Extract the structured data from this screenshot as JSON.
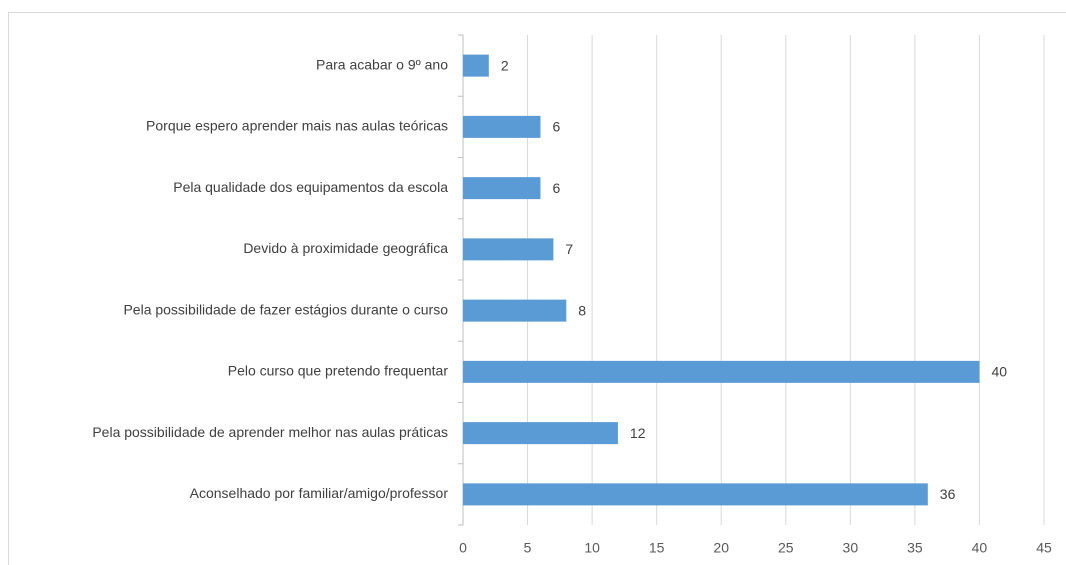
{
  "chart_data": {
    "type": "bar",
    "orientation": "horizontal",
    "categories": [
      "Para acabar o 9º ano",
      "Porque espero aprender mais nas aulas teóricas",
      "Pela qualidade dos equipamentos da escola",
      "Devido à proximidade geográfica",
      "Pela possibilidade de fazer estágios durante o curso",
      "Pelo curso que pretendo frequentar",
      "Pela possibilidade de aprender melhor nas aulas práticas",
      "Aconselhado por familiar/amigo/professor"
    ],
    "values": [
      2,
      6,
      6,
      7,
      8,
      40,
      12,
      36
    ],
    "color": "#5b9bd5",
    "xlim": [
      0,
      45
    ],
    "xticks": [
      0,
      5,
      10,
      15,
      20,
      25,
      30,
      35,
      40,
      45
    ],
    "grid": true
  }
}
